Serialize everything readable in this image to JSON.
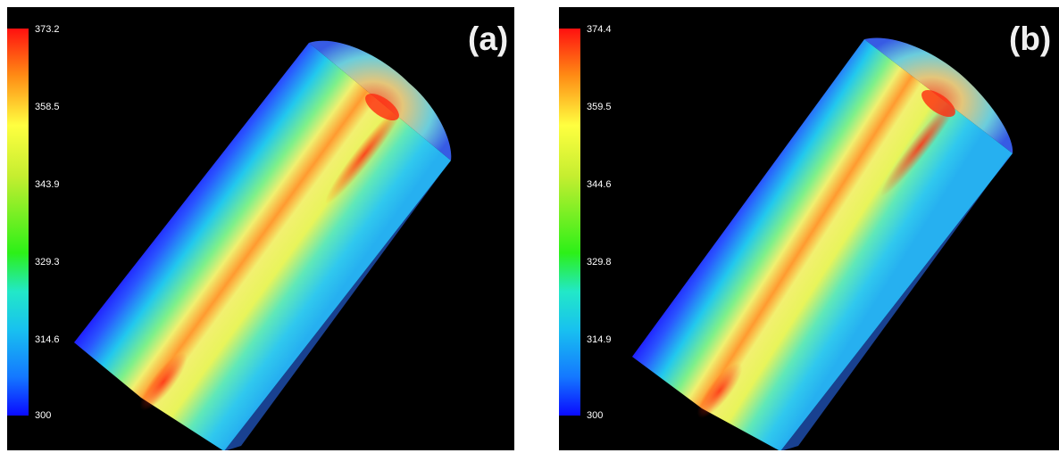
{
  "panels": [
    {
      "label": "(a)",
      "colorbar": {
        "ticks": [
          "373.2",
          "358.5",
          "343.9",
          "329.3",
          "314.6",
          "300"
        ]
      }
    },
    {
      "label": "(b)",
      "colorbar": {
        "ticks": [
          "374.4",
          "359.5",
          "344.6",
          "329.8",
          "314.9",
          "300"
        ]
      }
    }
  ],
  "colors": {
    "background": "#000000",
    "hot": "#ff1010",
    "warm": "#ffff40",
    "cool": "#22e8c8",
    "cold": "#0a0aff"
  }
}
